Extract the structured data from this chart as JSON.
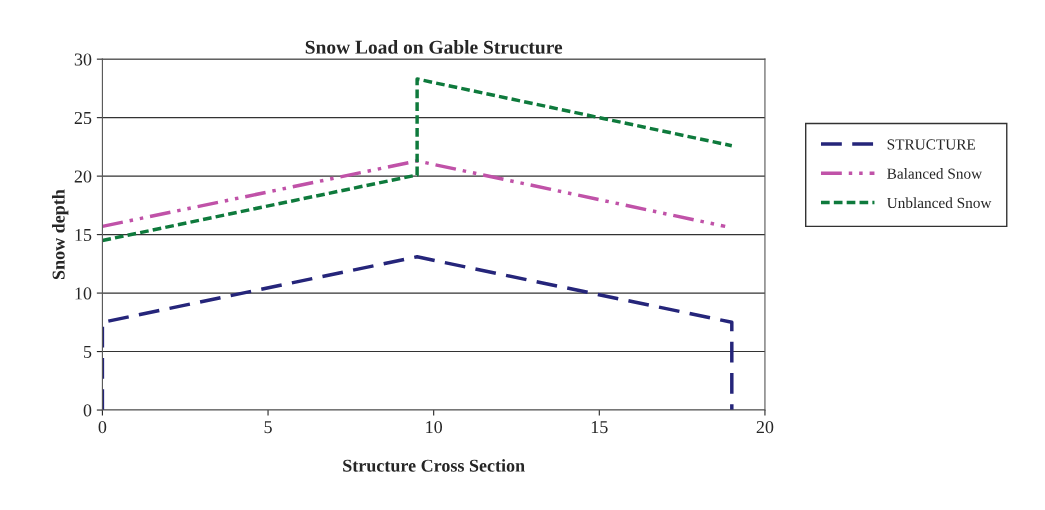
{
  "chart_data": {
    "type": "line",
    "title": "Snow Load on Gable Structure",
    "xlabel": "Structure Cross Section",
    "ylabel": "Snow depth",
    "xlim": [
      0,
      20
    ],
    "xticks": [
      0,
      5,
      10,
      15,
      20
    ],
    "ylim": [
      0,
      30
    ],
    "yticks": [
      0,
      5,
      10,
      15,
      20,
      25,
      30
    ],
    "grid": "y",
    "legend": "right",
    "marker": "none",
    "series": [
      {
        "name": "STRUCTURE",
        "color": "#25257a",
        "line_style": "dashed",
        "x": [
          0,
          0,
          9.5,
          19,
          19
        ],
        "values": [
          0,
          7.5,
          13.1,
          7.5,
          0
        ]
      },
      {
        "name": "Balanced Snow",
        "color": "#c052a8",
        "line_style": "dashdot",
        "x": [
          0,
          9.5,
          18.8
        ],
        "values": [
          15.7,
          21.3,
          15.7
        ]
      },
      {
        "name": "Unblanced Snow",
        "color": "#0e7a3c",
        "line_style": "dotted",
        "x": [
          0,
          9.5,
          9.5,
          19
        ],
        "values": [
          14.5,
          20.1,
          28.3,
          22.6
        ]
      }
    ]
  }
}
